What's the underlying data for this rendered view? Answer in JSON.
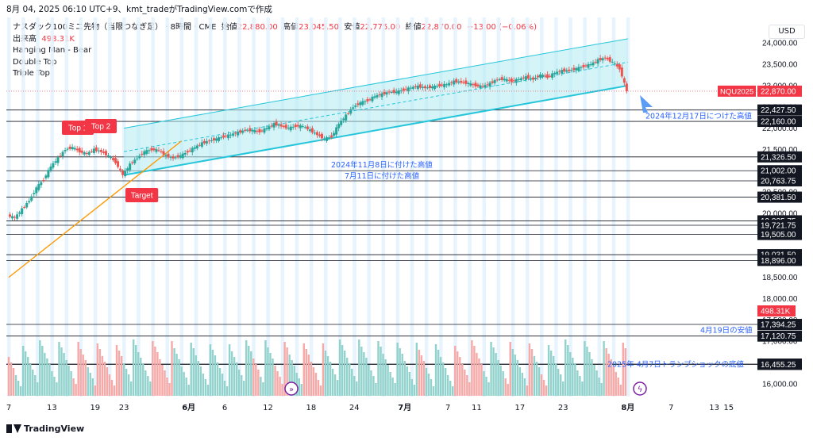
{
  "header": {
    "text": "8月 04, 2025 06:10 UTC+9、kmt_tradeがTradingView.comで作成"
  },
  "info": {
    "symbol_line": "ナスダック100ミニ先物（当限つなぎ足） · 8時間 · CME",
    "open_label": "始値",
    "open": "22,880.00",
    "high_label": "高値",
    "high": "23,045.50",
    "low_label": "安値",
    "low": "22,775.00",
    "close_label": "終値",
    "close": "22,870.00",
    "change": "−13.00 (−0.06%)",
    "volume_label": "出来高",
    "volume": "498.31K",
    "patterns": [
      "Hanging Man - Bear",
      "Double Top",
      "Triple Top"
    ]
  },
  "currency": "USD",
  "footer": {
    "brand": "TradingView"
  },
  "colors": {
    "up": "#26a69a",
    "down": "#ef5350",
    "vol_up": "#92d2cc",
    "vol_down": "#f7a9a7",
    "channel_fill": "#b2ebf2",
    "channel_line": "#26c6da",
    "trend_orange": "#ff9800",
    "session_band": "#e3f2fd",
    "label_red": "#f23645",
    "annot_blue": "#2962ff"
  },
  "chart_data": {
    "type": "candlestick",
    "title": "ナスダック100ミニ先物（当限つなぎ足）",
    "timeframe": "8時間",
    "exchange": "CME",
    "y_axis": {
      "range": [
        15700,
        24600
      ],
      "ticks": [
        "16,000.00",
        "16,500.00",
        "17,000.00",
        "17,500.00",
        "18,000.00",
        "18,500.00",
        "19,000.00",
        "19,500.00",
        "20,000.00",
        "20,500.00",
        "21,000.00",
        "21,500.00",
        "22,000.00",
        "22,500.00",
        "23,000.00",
        "23,500.00",
        "24,000.00"
      ],
      "position": "right"
    },
    "x_axis": {
      "ticks": [
        {
          "label": "7",
          "d": 0
        },
        {
          "label": "13",
          "d": 6
        },
        {
          "label": "19",
          "d": 12
        },
        {
          "label": "23",
          "d": 16
        },
        {
          "label": "6月",
          "d": 25
        },
        {
          "label": "6",
          "d": 30
        },
        {
          "label": "12",
          "d": 36
        },
        {
          "label": "18",
          "d": 42
        },
        {
          "label": "24",
          "d": 48
        },
        {
          "label": "7月",
          "d": 55
        },
        {
          "label": "7",
          "d": 61
        },
        {
          "label": "11",
          "d": 65
        },
        {
          "label": "17",
          "d": 71
        },
        {
          "label": "23",
          "d": 77
        },
        {
          "label": "8月",
          "d": 86
        },
        {
          "label": "7",
          "d": 92
        },
        {
          "label": "13",
          "d": 98
        },
        {
          "label": "15",
          "d": 100
        }
      ],
      "day_range": [
        0,
        103
      ]
    },
    "close_path": [
      [
        0,
        19950
      ],
      [
        1,
        19900
      ],
      [
        2,
        20100
      ],
      [
        3,
        20300
      ],
      [
        4,
        20600
      ],
      [
        5,
        20800
      ],
      [
        6,
        21100
      ],
      [
        7,
        21300
      ],
      [
        8,
        21500
      ],
      [
        9,
        21550
      ],
      [
        10,
        21450
      ],
      [
        11,
        21400
      ],
      [
        12,
        21500
      ],
      [
        13,
        21450
      ],
      [
        14,
        21350
      ],
      [
        15,
        21200
      ],
      [
        16,
        20900
      ],
      [
        17,
        21150
      ],
      [
        18,
        21300
      ],
      [
        19,
        21450
      ],
      [
        20,
        21500
      ],
      [
        21,
        21480
      ],
      [
        22,
        21350
      ],
      [
        23,
        21300
      ],
      [
        24,
        21350
      ],
      [
        25,
        21450
      ],
      [
        26,
        21550
      ],
      [
        27,
        21650
      ],
      [
        28,
        21700
      ],
      [
        29,
        21750
      ],
      [
        30,
        21800
      ],
      [
        31,
        21850
      ],
      [
        32,
        21900
      ],
      [
        33,
        21950
      ],
      [
        34,
        21950
      ],
      [
        35,
        21920
      ],
      [
        36,
        22000
      ],
      [
        37,
        22100
      ],
      [
        38,
        22050
      ],
      [
        39,
        22000
      ],
      [
        40,
        22050
      ],
      [
        41,
        22050
      ],
      [
        42,
        21950
      ],
      [
        43,
        21850
      ],
      [
        44,
        21750
      ],
      [
        45,
        21800
      ],
      [
        46,
        22100
      ],
      [
        47,
        22300
      ],
      [
        48,
        22500
      ],
      [
        49,
        22600
      ],
      [
        50,
        22650
      ],
      [
        51,
        22750
      ],
      [
        52,
        22800
      ],
      [
        53,
        22850
      ],
      [
        54,
        22850
      ],
      [
        55,
        22900
      ],
      [
        56,
        22950
      ],
      [
        57,
        22980
      ],
      [
        58,
        22950
      ],
      [
        59,
        22970
      ],
      [
        60,
        23000
      ],
      [
        61,
        23030
      ],
      [
        62,
        23100
      ],
      [
        63,
        23080
      ],
      [
        64,
        23050
      ],
      [
        65,
        23000
      ],
      [
        66,
        22980
      ],
      [
        67,
        23050
      ],
      [
        68,
        23150
      ],
      [
        69,
        23150
      ],
      [
        70,
        23100
      ],
      [
        71,
        23150
      ],
      [
        72,
        23200
      ],
      [
        73,
        23150
      ],
      [
        74,
        23250
      ],
      [
        75,
        23200
      ],
      [
        76,
        23300
      ],
      [
        77,
        23350
      ],
      [
        78,
        23350
      ],
      [
        79,
        23400
      ],
      [
        80,
        23450
      ],
      [
        81,
        23500
      ],
      [
        82,
        23600
      ],
      [
        83,
        23650
      ],
      [
        84,
        23550
      ],
      [
        85,
        23400
      ],
      [
        86,
        22870
      ]
    ],
    "volume": {
      "axis_max": "498.31K",
      "current": "498.31K"
    },
    "price_levels": [
      {
        "value": 22427.5,
        "label": "22,427.50"
      },
      {
        "value": 22160.0,
        "label": "22,160.00"
      },
      {
        "value": 21326.5,
        "label": "21,326.50"
      },
      {
        "value": 21002.0,
        "label": "21,002.00"
      },
      {
        "value": 20763.75,
        "label": "20,763.75"
      },
      {
        "value": 20381.5,
        "label": "20,381.50"
      },
      {
        "value": 19825.75,
        "label": "19,825.75"
      },
      {
        "value": 19721.75,
        "label": "19,721.75"
      },
      {
        "value": 19505.0,
        "label": "19,505.00"
      },
      {
        "value": 19031.5,
        "label": "19,031.50"
      },
      {
        "value": 18896.0,
        "label": "18,896.00"
      },
      {
        "value": 17394.25,
        "label": "17,394.25"
      },
      {
        "value": 17120.75,
        "label": "17,120.75"
      },
      {
        "value": 16463.0,
        "label": "16,463.00"
      },
      {
        "value": 16455.25,
        "label": "16,455.25"
      }
    ],
    "last_price": {
      "symbol": "NQU2025",
      "value": 22870.0,
      "label": "22,870.00"
    },
    "level_annotations": [
      {
        "text": "2024年12月17日につけた高値",
        "price": 22290
      },
      {
        "text": "2024年11月8日に付けた高値",
        "price": 21150
      },
      {
        "text": "7月11日に付けた高値",
        "price": 20890
      },
      {
        "text": "4月19日の安値",
        "price": 17260
      },
      {
        "text": "2025年 4月7日トランプショックの底値",
        "price": 16459
      }
    ],
    "pattern_labels": [
      {
        "text": "Top 1"
      },
      {
        "text": "Top 2"
      },
      {
        "text": "Target"
      }
    ],
    "channel": {
      "upper": [
        [
          16,
          22000
        ],
        [
          86,
          24100
        ]
      ],
      "lower": [
        [
          16,
          20900
        ],
        [
          86,
          23000
        ]
      ]
    },
    "trendline": [
      [
        0,
        18500
      ],
      [
        24,
        21700
      ]
    ]
  }
}
